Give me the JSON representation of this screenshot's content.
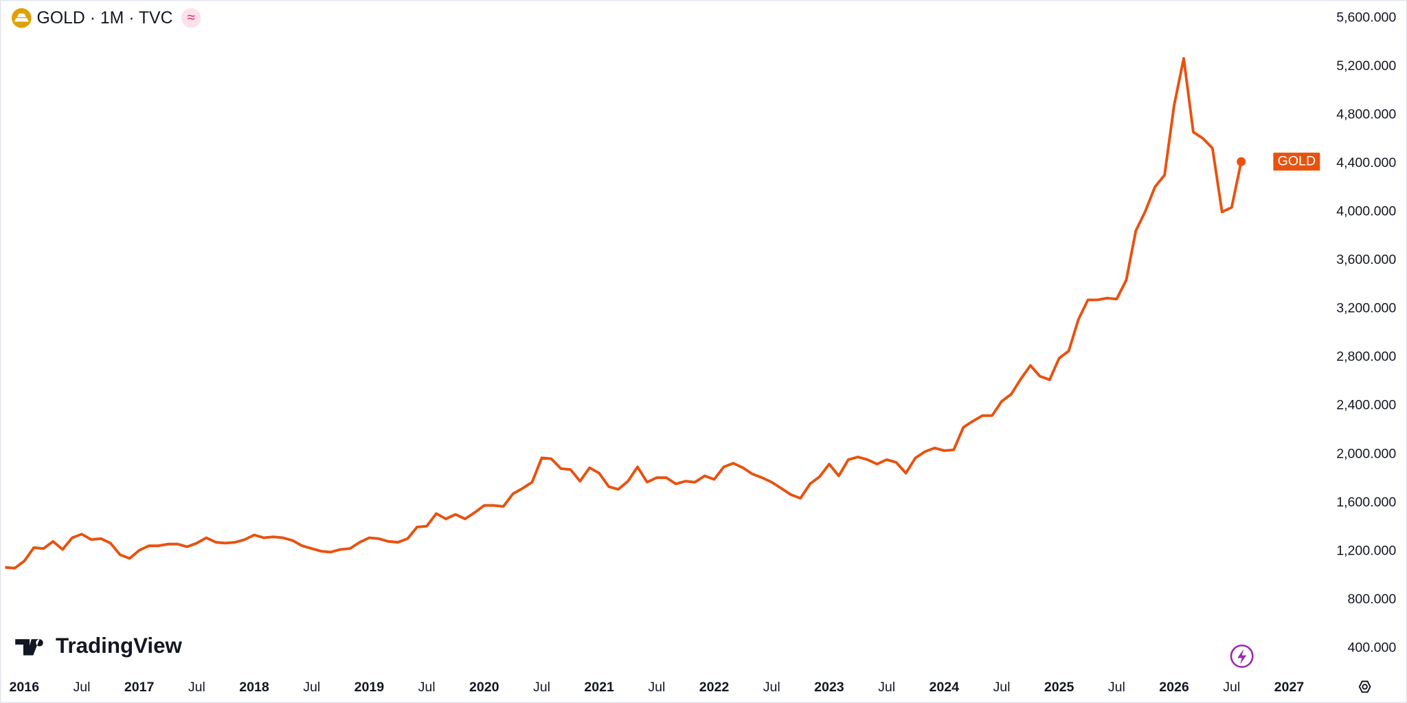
{
  "chart_data": {
    "type": "line",
    "title": "GOLD · 1M · TVC",
    "watermark": "TradingView",
    "x": [
      "2015-11",
      "2015-12",
      "2016-01",
      "2016-02",
      "2016-03",
      "2016-04",
      "2016-05",
      "2016-06",
      "2016-07",
      "2016-08",
      "2016-09",
      "2016-10",
      "2016-11",
      "2016-12",
      "2017-01",
      "2017-02",
      "2017-03",
      "2017-04",
      "2017-05",
      "2017-06",
      "2017-07",
      "2017-08",
      "2017-09",
      "2017-10",
      "2017-11",
      "2017-12",
      "2018-01",
      "2018-02",
      "2018-03",
      "2018-04",
      "2018-05",
      "2018-06",
      "2018-07",
      "2018-08",
      "2018-09",
      "2018-10",
      "2018-11",
      "2018-12",
      "2019-01",
      "2019-02",
      "2019-03",
      "2019-04",
      "2019-05",
      "2019-06",
      "2019-07",
      "2019-08",
      "2019-09",
      "2019-10",
      "2019-11",
      "2019-12",
      "2020-01",
      "2020-02",
      "2020-03",
      "2020-04",
      "2020-05",
      "2020-06",
      "2020-07",
      "2020-08",
      "2020-09",
      "2020-10",
      "2020-11",
      "2020-12",
      "2021-01",
      "2021-02",
      "2021-03",
      "2021-04",
      "2021-05",
      "2021-06",
      "2021-07",
      "2021-08",
      "2021-09",
      "2021-10",
      "2021-11",
      "2021-12",
      "2022-01",
      "2022-02",
      "2022-03",
      "2022-04",
      "2022-05",
      "2022-06",
      "2022-07",
      "2022-08",
      "2022-09",
      "2022-10",
      "2022-11",
      "2022-12",
      "2023-01",
      "2023-02",
      "2023-03",
      "2023-04",
      "2023-05",
      "2023-06",
      "2023-07",
      "2023-08",
      "2023-09",
      "2023-10",
      "2023-11",
      "2023-12",
      "2024-01",
      "2024-02",
      "2024-03",
      "2024-04",
      "2024-05",
      "2024-06",
      "2024-07",
      "2024-08",
      "2024-09",
      "2024-10",
      "2024-11",
      "2024-12",
      "2025-01",
      "2025-02",
      "2025-03",
      "2025-04",
      "2025-05",
      "2025-06",
      "2025-07",
      "2025-08",
      "2025-09",
      "2025-10",
      "2025-11",
      "2025-12",
      "2026-01",
      "2026-02",
      "2026-03",
      "2026-04",
      "2026-05",
      "2026-06",
      "2026-07",
      "2026-08"
    ],
    "series": [
      {
        "name": "GOLD",
        "color": "#e8520f",
        "values": [
          1067,
          1060,
          1119,
          1230,
          1222,
          1281,
          1215,
          1311,
          1341,
          1296,
          1304,
          1267,
          1171,
          1141,
          1208,
          1245,
          1245,
          1259,
          1259,
          1237,
          1267,
          1311,
          1274,
          1267,
          1274,
          1296,
          1334,
          1311,
          1319,
          1311,
          1289,
          1245,
          1222,
          1200,
          1193,
          1215,
          1222,
          1274,
          1311,
          1304,
          1281,
          1274,
          1304,
          1400,
          1407,
          1511,
          1467,
          1504,
          1467,
          1519,
          1578,
          1578,
          1570,
          1674,
          1719,
          1770,
          1970,
          1963,
          1882,
          1874,
          1778,
          1889,
          1844,
          1733,
          1711,
          1778,
          1896,
          1770,
          1807,
          1807,
          1756,
          1778,
          1770,
          1822,
          1793,
          1896,
          1926,
          1889,
          1837,
          1807,
          1770,
          1719,
          1667,
          1637,
          1756,
          1815,
          1919,
          1822,
          1956,
          1978,
          1956,
          1919,
          1956,
          1933,
          1844,
          1970,
          2022,
          2052,
          2030,
          2037,
          2222,
          2274,
          2319,
          2319,
          2437,
          2496,
          2622,
          2733,
          2644,
          2615,
          2793,
          2852,
          3111,
          3274,
          3274,
          3289,
          3281,
          3437,
          3844,
          4007,
          4207,
          4304,
          4881,
          5267,
          4659,
          4607,
          4526,
          4000,
          4037,
          4415
        ]
      }
    ],
    "xlim": [
      "2015-10",
      "2027-03"
    ],
    "xticks": [
      {
        "value": "2016-01",
        "label": "2016"
      },
      {
        "value": "2016-07",
        "label": "Jul"
      },
      {
        "value": "2017-01",
        "label": "2017"
      },
      {
        "value": "2017-07",
        "label": "Jul"
      },
      {
        "value": "2018-01",
        "label": "2018"
      },
      {
        "value": "2018-07",
        "label": "Jul"
      },
      {
        "value": "2019-01",
        "label": "2019"
      },
      {
        "value": "2019-07",
        "label": "Jul"
      },
      {
        "value": "2020-01",
        "label": "2020"
      },
      {
        "value": "2020-07",
        "label": "Jul"
      },
      {
        "value": "2021-01",
        "label": "2021"
      },
      {
        "value": "2021-07",
        "label": "Jul"
      },
      {
        "value": "2022-01",
        "label": "2022"
      },
      {
        "value": "2022-07",
        "label": "Jul"
      },
      {
        "value": "2023-01",
        "label": "2023"
      },
      {
        "value": "2023-07",
        "label": "Jul"
      },
      {
        "value": "2024-01",
        "label": "2024"
      },
      {
        "value": "2024-07",
        "label": "Jul"
      },
      {
        "value": "2025-01",
        "label": "2025"
      },
      {
        "value": "2025-07",
        "label": "Jul"
      },
      {
        "value": "2026-01",
        "label": "2026"
      },
      {
        "value": "2026-07",
        "label": "Jul"
      },
      {
        "value": "2027-01",
        "label": "2027"
      }
    ],
    "ylim": [
      193,
      5748
    ],
    "yticks": [
      {
        "value": 400,
        "label": "400.000"
      },
      {
        "value": 800,
        "label": "800.000"
      },
      {
        "value": 1200,
        "label": "1,200.000"
      },
      {
        "value": 1600,
        "label": "1,600.000"
      },
      {
        "value": 2000,
        "label": "2,000.000"
      },
      {
        "value": 2400,
        "label": "2,400.000"
      },
      {
        "value": 2800,
        "label": "2,800.000"
      },
      {
        "value": 3200,
        "label": "3,200.000"
      },
      {
        "value": 3600,
        "label": "3,600.000"
      },
      {
        "value": 4000,
        "label": "4,000.000"
      },
      {
        "value": 4400,
        "label": "4,400.000"
      },
      {
        "value": 4800,
        "label": "4,800.000"
      },
      {
        "value": 5200,
        "label": "5,200.000"
      },
      {
        "value": 5600,
        "label": "5,600.000"
      }
    ],
    "grid": false
  }
}
